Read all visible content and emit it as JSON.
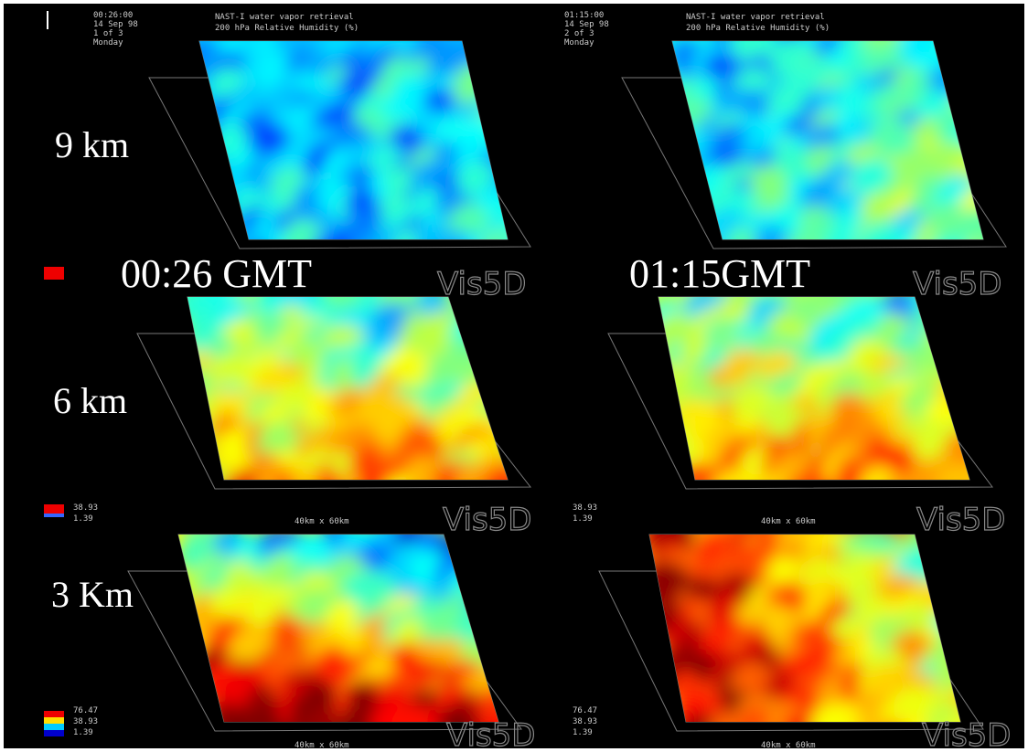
{
  "header": {
    "title": "NAST-I water vapor retrieval",
    "subtitle": "200 hPa Relative Humidity (%)",
    "left": {
      "time": "00:26:00",
      "date": "14 Sep 98",
      "frame": "1 of 3",
      "day": "Monday"
    },
    "right": {
      "time": "01:15:00",
      "date": "14 Sep 98",
      "frame": "2 of 3",
      "day": "Monday"
    }
  },
  "rows": [
    {
      "label": "9 km"
    },
    {
      "label": "6 km"
    },
    {
      "label": "3 Km"
    }
  ],
  "times": [
    "00:26 GMT",
    "01:15GMT"
  ],
  "watermark": "Vis5D",
  "box_size": "40km x 60km",
  "scale_labels": {
    "max": "76.47",
    "mid": "38.93",
    "min": "1.39"
  }
}
